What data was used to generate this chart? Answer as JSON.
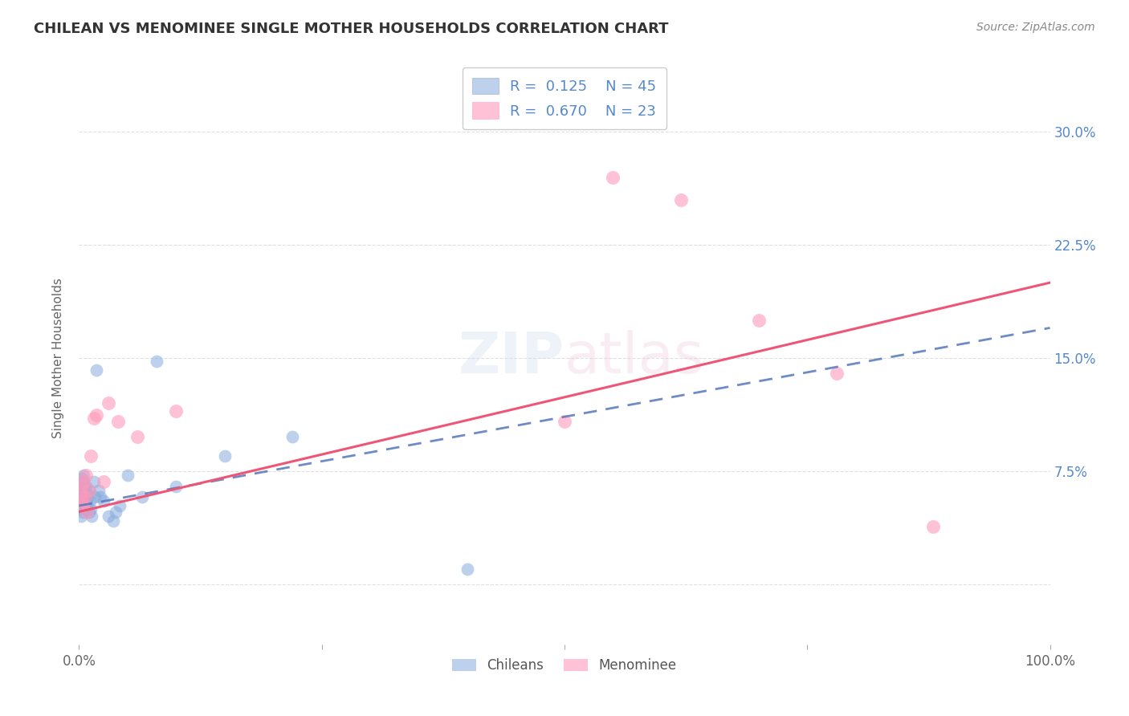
{
  "title": "CHILEAN VS MENOMINEE SINGLE MOTHER HOUSEHOLDS CORRELATION CHART",
  "source": "Source: ZipAtlas.com",
  "ylabel": "Single Mother Households",
  "xlim": [
    0,
    1.0
  ],
  "ylim": [
    -0.04,
    0.34
  ],
  "ytick_positions": [
    0.0,
    0.075,
    0.15,
    0.225,
    0.3
  ],
  "right_ytick_labels": [
    "",
    "7.5%",
    "15.0%",
    "22.5%",
    "30.0%"
  ],
  "xtick_positions": [
    0.0,
    0.25,
    0.5,
    0.75,
    1.0
  ],
  "xticklabels": [
    "0.0%",
    "",
    "",
    "",
    "100.0%"
  ],
  "chilean_color": "#88AADD",
  "menominee_color": "#FF99BB",
  "chilean_line_color": "#5577BB",
  "menominee_line_color": "#EE5577",
  "R_chilean": 0.125,
  "N_chilean": 45,
  "R_menominee": 0.67,
  "N_menominee": 23,
  "background_color": "#FFFFFF",
  "grid_color": "#DDDDDD",
  "chilean_x": [
    0.001,
    0.001,
    0.002,
    0.002,
    0.002,
    0.003,
    0.003,
    0.003,
    0.003,
    0.004,
    0.004,
    0.004,
    0.005,
    0.005,
    0.005,
    0.006,
    0.006,
    0.006,
    0.007,
    0.007,
    0.008,
    0.008,
    0.009,
    0.01,
    0.01,
    0.011,
    0.012,
    0.013,
    0.015,
    0.016,
    0.018,
    0.02,
    0.022,
    0.025,
    0.03,
    0.035,
    0.038,
    0.042,
    0.05,
    0.065,
    0.08,
    0.1,
    0.15,
    0.22,
    0.4
  ],
  "chilean_y": [
    0.05,
    0.06,
    0.055,
    0.065,
    0.045,
    0.058,
    0.062,
    0.07,
    0.052,
    0.06,
    0.048,
    0.068,
    0.055,
    0.065,
    0.072,
    0.058,
    0.062,
    0.05,
    0.055,
    0.065,
    0.06,
    0.052,
    0.058,
    0.048,
    0.062,
    0.055,
    0.05,
    0.045,
    0.068,
    0.058,
    0.142,
    0.062,
    0.058,
    0.055,
    0.045,
    0.042,
    0.048,
    0.052,
    0.072,
    0.058,
    0.148,
    0.065,
    0.085,
    0.098,
    0.01
  ],
  "menominee_x": [
    0.001,
    0.002,
    0.003,
    0.004,
    0.005,
    0.006,
    0.007,
    0.008,
    0.01,
    0.012,
    0.015,
    0.018,
    0.025,
    0.03,
    0.04,
    0.06,
    0.1,
    0.5,
    0.55,
    0.62,
    0.7,
    0.78,
    0.88
  ],
  "menominee_y": [
    0.06,
    0.065,
    0.055,
    0.052,
    0.068,
    0.058,
    0.072,
    0.048,
    0.062,
    0.085,
    0.11,
    0.112,
    0.068,
    0.12,
    0.108,
    0.098,
    0.115,
    0.108,
    0.27,
    0.255,
    0.175,
    0.14,
    0.038
  ],
  "line_start_x": 0.0,
  "line_end_x": 1.0
}
